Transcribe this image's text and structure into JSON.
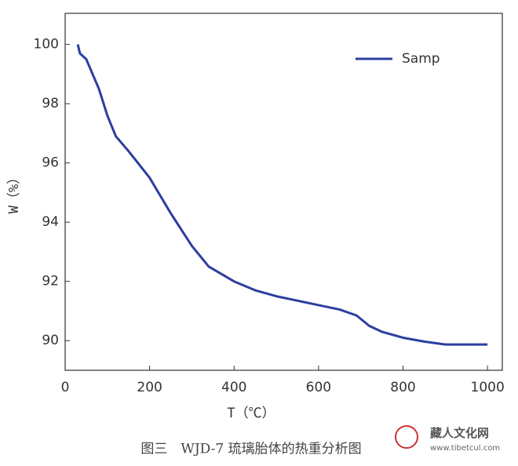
{
  "chart_data": {
    "type": "line",
    "x_label": "T（℃）",
    "y_label": "W（%）",
    "caption": "图三　WJD-7 琉璃胎体的热重分析图",
    "watermark": "藏人文化网",
    "watermark_url": "www.tibetcul.com",
    "xlim": [
      0,
      1035
    ],
    "xticks": [
      0,
      200,
      400,
      600,
      800,
      1000
    ],
    "ylim": [
      89,
      101.05
    ],
    "yticks": [
      90,
      92,
      94,
      96,
      98,
      100
    ],
    "legend": "upper right",
    "x": [
      30,
      35,
      50,
      80,
      100,
      120,
      150,
      200,
      250,
      300,
      340,
      400,
      450,
      500,
      600,
      650,
      690,
      720,
      750,
      800,
      850,
      900,
      1000
    ],
    "series": [
      {
        "name": "Samp",
        "color": "#2d3ea0",
        "values": [
          100,
          99.7,
          99.5,
          98.5,
          97.6,
          96.9,
          96.4,
          95.5,
          94.3,
          93.2,
          92.5,
          92.0,
          91.7,
          91.5,
          91.2,
          91.05,
          90.85,
          90.5,
          90.3,
          90.1,
          89.97,
          89.87,
          89.87
        ]
      }
    ]
  }
}
